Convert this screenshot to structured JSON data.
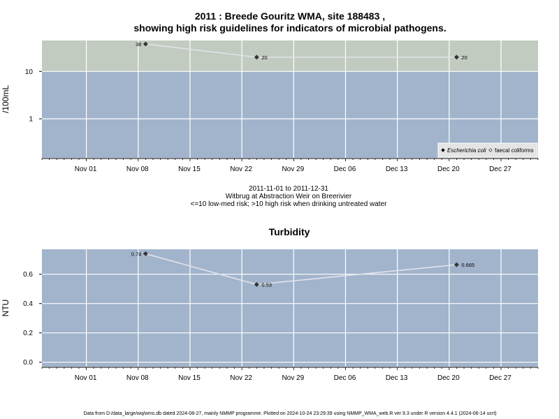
{
  "page": {
    "title_line1": "2011 : Breede Gouritz WMA, site 188483 ,",
    "title_line2": "showing high risk guidelines for indicators of microbial pathogens.",
    "date_range": "2011-11-01 to 2011-12-31",
    "site_name": "Witbrug at Abstraction Weir on Breerivier",
    "risk_note": "<=10 low-med risk; >10 high risk when drinking untreated water",
    "turbidity_title": "Turbidity",
    "footer": "Data from D:/data_large/wq/wms.db dated 2024-08-27, mainly NMMP programme. Plotted on 2024-10-24 23:29:39 using NMMP_WMA_web.R ver 9.3 under R version 4.4.1 (2024-06-14 ucrt)"
  },
  "colors": {
    "panel_bg": "#a2b4cc",
    "high_risk_band": "#c2cbc0",
    "grid": "#ffffff",
    "series_line": "#e2e2ea",
    "point": "#333333"
  },
  "chart_data": [
    {
      "type": "scatter",
      "title": "",
      "ylabel": "/100mL",
      "y_scale": "log",
      "ylim": [
        0.15,
        45
      ],
      "y_ticks": [
        {
          "value": 1,
          "label": "1"
        },
        {
          "value": 10,
          "label": "10"
        }
      ],
      "x_range": [
        "2011-10-26",
        "2012-01-01"
      ],
      "x_ticks": [
        "Nov 01",
        "Nov 08",
        "Nov 15",
        "Nov 22",
        "Nov 29",
        "Dec 06",
        "Dec 13",
        "Dec 20",
        "Dec 27"
      ],
      "x_tick_dates": [
        "2011-11-01",
        "2011-11-08",
        "2011-11-15",
        "2011-11-22",
        "2011-11-29",
        "2011-12-06",
        "2011-12-13",
        "2011-12-20",
        "2011-12-27"
      ],
      "threshold": 10,
      "series": [
        {
          "name": "Escherichia coli",
          "x": [
            "2011-11-09",
            "2011-11-24",
            "2011-12-21"
          ],
          "y": [
            38,
            20,
            20
          ],
          "labels": [
            "38",
            "20",
            "20"
          ]
        }
      ],
      "legend": {
        "position": "bottom-right",
        "entries": [
          {
            "label": "Escherichia coli",
            "marker": "filled-diamond",
            "italic": true
          },
          {
            "label": "faecal coliforms",
            "marker": "open-diamond",
            "italic": false
          }
        ]
      },
      "grid": true
    },
    {
      "type": "line",
      "title": "Turbidity",
      "ylabel": "NTU",
      "ylim": [
        -0.03,
        0.77
      ],
      "y_ticks": [
        {
          "value": 0.0,
          "label": "0.0"
        },
        {
          "value": 0.2,
          "label": "0.2"
        },
        {
          "value": 0.4,
          "label": "0.4"
        },
        {
          "value": 0.6,
          "label": "0.6"
        }
      ],
      "x_range": [
        "2011-10-26",
        "2012-01-01"
      ],
      "x_ticks": [
        "Nov 01",
        "Nov 08",
        "Nov 15",
        "Nov 22",
        "Nov 29",
        "Dec 06",
        "Dec 13",
        "Dec 20",
        "Dec 27"
      ],
      "x_tick_dates": [
        "2011-11-01",
        "2011-11-08",
        "2011-11-15",
        "2011-11-22",
        "2011-11-29",
        "2011-12-06",
        "2011-12-13",
        "2011-12-20",
        "2011-12-27"
      ],
      "series": [
        {
          "x": [
            "2011-11-09",
            "2011-11-24",
            "2011-12-21"
          ],
          "y": [
            0.74,
            0.53,
            0.665
          ],
          "labels": [
            "0.74",
            "0.53",
            "0.665"
          ]
        }
      ],
      "grid": true
    }
  ]
}
